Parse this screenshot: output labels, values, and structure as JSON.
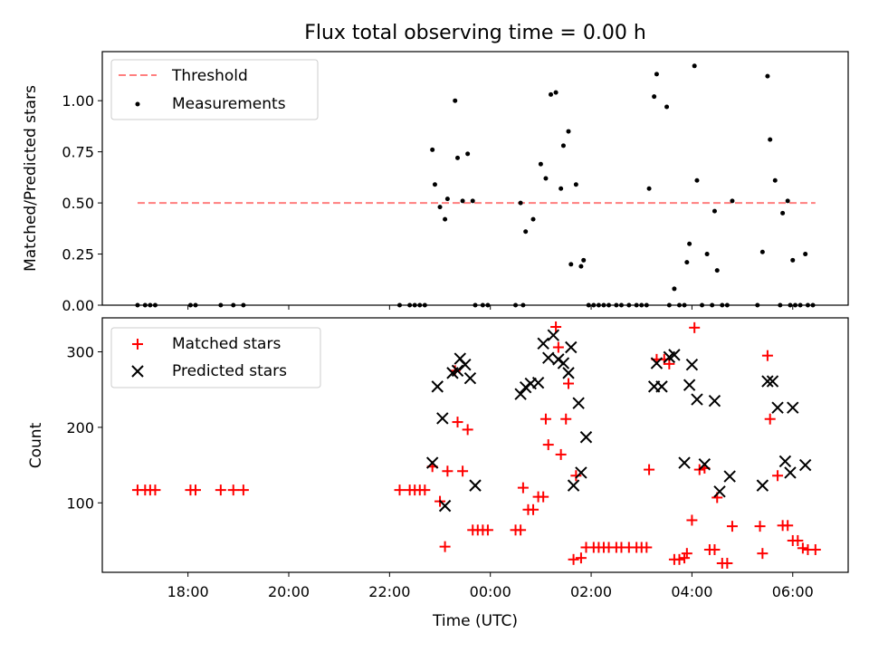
{
  "chart_data": [
    {
      "type": "scatter",
      "title": "Flux total observing time = 0.00 h",
      "ylabel": "Matched/Predicted stars",
      "xlim": [
        16.3,
        31.1
      ],
      "ylim": [
        0.0,
        1.24
      ],
      "yticks": [
        "0.00",
        "0.25",
        "0.50",
        "0.75",
        "1.00"
      ],
      "ytick_values": [
        0.0,
        0.25,
        0.5,
        0.75,
        1.0
      ],
      "legend_position": "top-left",
      "threshold": {
        "name": "Threshold",
        "value": 0.5,
        "x": [
          17.0,
          30.45
        ],
        "color": "#ff7f7f"
      },
      "series": [
        {
          "name": "Measurements",
          "color": "#000000",
          "points": [
            [
              17.0,
              0
            ],
            [
              17.15,
              0
            ],
            [
              17.25,
              0
            ],
            [
              17.35,
              0
            ],
            [
              18.05,
              0
            ],
            [
              18.15,
              0
            ],
            [
              18.65,
              0
            ],
            [
              18.9,
              0
            ],
            [
              19.1,
              0
            ],
            [
              22.2,
              0
            ],
            [
              22.4,
              0
            ],
            [
              22.5,
              0
            ],
            [
              22.6,
              0
            ],
            [
              22.7,
              0
            ],
            [
              22.85,
              0.76
            ],
            [
              22.9,
              0.59
            ],
            [
              23.0,
              0.48
            ],
            [
              23.1,
              0.42
            ],
            [
              23.15,
              0.52
            ],
            [
              23.3,
              1.0
            ],
            [
              23.35,
              0.72
            ],
            [
              23.45,
              0.51
            ],
            [
              23.55,
              0.74
            ],
            [
              23.65,
              0.51
            ],
            [
              23.7,
              0
            ],
            [
              23.85,
              0
            ],
            [
              23.95,
              0
            ],
            [
              24.5,
              0
            ],
            [
              24.6,
              0.5
            ],
            [
              24.65,
              0
            ],
            [
              24.7,
              0.36
            ],
            [
              24.85,
              0.42
            ],
            [
              25.0,
              0.69
            ],
            [
              25.1,
              0.62
            ],
            [
              25.2,
              1.03
            ],
            [
              25.3,
              1.04
            ],
            [
              25.4,
              0.57
            ],
            [
              25.45,
              0.78
            ],
            [
              25.55,
              0.85
            ],
            [
              25.6,
              0.2
            ],
            [
              25.7,
              0.59
            ],
            [
              25.8,
              0.19
            ],
            [
              25.85,
              0.22
            ],
            [
              25.95,
              0
            ],
            [
              26.05,
              0
            ],
            [
              26.15,
              0
            ],
            [
              26.25,
              0
            ],
            [
              26.35,
              0
            ],
            [
              26.5,
              0
            ],
            [
              26.6,
              0
            ],
            [
              26.75,
              0
            ],
            [
              26.9,
              0
            ],
            [
              27.0,
              0
            ],
            [
              27.1,
              0
            ],
            [
              27.15,
              0.57
            ],
            [
              27.25,
              1.02
            ],
            [
              27.3,
              1.13
            ],
            [
              27.5,
              0.97
            ],
            [
              27.55,
              0
            ],
            [
              27.65,
              0.08
            ],
            [
              27.75,
              0
            ],
            [
              27.85,
              0
            ],
            [
              27.9,
              0.21
            ],
            [
              27.95,
              0.3
            ],
            [
              28.05,
              1.17
            ],
            [
              28.1,
              0.61
            ],
            [
              28.2,
              0
            ],
            [
              28.3,
              0.25
            ],
            [
              28.4,
              0
            ],
            [
              28.45,
              0.46
            ],
            [
              28.5,
              0.17
            ],
            [
              28.6,
              0
            ],
            [
              28.7,
              0
            ],
            [
              28.8,
              0.51
            ],
            [
              29.3,
              0
            ],
            [
              29.4,
              0.26
            ],
            [
              29.5,
              1.12
            ],
            [
              29.55,
              0.81
            ],
            [
              29.65,
              0.61
            ],
            [
              29.75,
              0
            ],
            [
              29.8,
              0.45
            ],
            [
              29.9,
              0.51
            ],
            [
              29.95,
              0
            ],
            [
              30.0,
              0.22
            ],
            [
              30.05,
              0
            ],
            [
              30.15,
              0
            ],
            [
              30.25,
              0.25
            ],
            [
              30.3,
              0
            ],
            [
              30.4,
              0
            ]
          ]
        }
      ]
    },
    {
      "type": "scatter",
      "xlabel": "Time (UTC)",
      "ylabel": "Count",
      "xlim": [
        16.3,
        31.1
      ],
      "ylim": [
        8,
        345
      ],
      "xticks": [
        "18:00",
        "20:00",
        "22:00",
        "00:00",
        "02:00",
        "04:00",
        "06:00"
      ],
      "xtick_values": [
        18,
        20,
        22,
        24,
        26,
        28,
        30
      ],
      "yticks": [
        "100",
        "200",
        "300"
      ],
      "ytick_values": [
        100,
        200,
        300
      ],
      "legend_position": "top-left",
      "series": [
        {
          "name": "Matched stars",
          "marker": "+",
          "color": "#ff0000",
          "points": [
            [
              17.0,
              117
            ],
            [
              17.15,
              117
            ],
            [
              17.25,
              117
            ],
            [
              17.35,
              117
            ],
            [
              18.05,
              117
            ],
            [
              18.15,
              117
            ],
            [
              18.65,
              117
            ],
            [
              18.9,
              117
            ],
            [
              19.1,
              117
            ],
            [
              22.2,
              117
            ],
            [
              22.4,
              117
            ],
            [
              22.5,
              117
            ],
            [
              22.6,
              117
            ],
            [
              22.7,
              117
            ],
            [
              22.85,
              148
            ],
            [
              23.0,
              102
            ],
            [
              23.1,
              42
            ],
            [
              23.15,
              142
            ],
            [
              23.3,
              275
            ],
            [
              23.35,
              207
            ],
            [
              23.45,
              142
            ],
            [
              23.55,
              197
            ],
            [
              23.65,
              64
            ],
            [
              23.75,
              64
            ],
            [
              23.85,
              64
            ],
            [
              23.95,
              64
            ],
            [
              24.5,
              64
            ],
            [
              24.6,
              64
            ],
            [
              24.65,
              120
            ],
            [
              24.75,
              91
            ],
            [
              24.85,
              91
            ],
            [
              24.95,
              108
            ],
            [
              25.05,
              108
            ],
            [
              25.1,
              211
            ],
            [
              25.15,
              177
            ],
            [
              25.3,
              333
            ],
            [
              25.35,
              306
            ],
            [
              25.4,
              164
            ],
            [
              25.5,
              211
            ],
            [
              25.55,
              258
            ],
            [
              25.65,
              25
            ],
            [
              25.7,
              136
            ],
            [
              25.8,
              27
            ],
            [
              25.9,
              41
            ],
            [
              26.05,
              41
            ],
            [
              26.15,
              41
            ],
            [
              26.25,
              41
            ],
            [
              26.35,
              41
            ],
            [
              26.5,
              41
            ],
            [
              26.6,
              41
            ],
            [
              26.75,
              41
            ],
            [
              26.9,
              41
            ],
            [
              27.0,
              41
            ],
            [
              27.1,
              41
            ],
            [
              27.15,
              144
            ],
            [
              27.3,
              290
            ],
            [
              27.45,
              290
            ],
            [
              27.55,
              284
            ],
            [
              27.65,
              25
            ],
            [
              27.75,
              25
            ],
            [
              27.85,
              27
            ],
            [
              27.9,
              33
            ],
            [
              28.0,
              77
            ],
            [
              28.05,
              332
            ],
            [
              28.15,
              144
            ],
            [
              28.25,
              146
            ],
            [
              28.35,
              38
            ],
            [
              28.45,
              38
            ],
            [
              28.5,
              107
            ],
            [
              28.6,
              20
            ],
            [
              28.7,
              20
            ],
            [
              28.8,
              69
            ],
            [
              29.35,
              69
            ],
            [
              29.4,
              33
            ],
            [
              29.5,
              295
            ],
            [
              29.55,
              211
            ],
            [
              29.7,
              136
            ],
            [
              29.8,
              70
            ],
            [
              29.9,
              70
            ],
            [
              30.0,
              50
            ],
            [
              30.1,
              50
            ],
            [
              30.2,
              40
            ],
            [
              30.3,
              38
            ],
            [
              30.45,
              38
            ]
          ]
        },
        {
          "name": "Predicted stars",
          "marker": "x",
          "color": "#000000",
          "points": [
            [
              22.85,
              153
            ],
            [
              22.95,
              254
            ],
            [
              23.05,
              212
            ],
            [
              23.1,
              96
            ],
            [
              23.25,
              272
            ],
            [
              23.35,
              275
            ],
            [
              23.4,
              291
            ],
            [
              23.5,
              283
            ],
            [
              23.6,
              265
            ],
            [
              23.7,
              123
            ],
            [
              24.6,
              244
            ],
            [
              24.7,
              253
            ],
            [
              24.8,
              258
            ],
            [
              24.95,
              259
            ],
            [
              25.05,
              311
            ],
            [
              25.15,
              292
            ],
            [
              25.25,
              322
            ],
            [
              25.35,
              290
            ],
            [
              25.45,
              285
            ],
            [
              25.55,
              272
            ],
            [
              25.6,
              306
            ],
            [
              25.65,
              123
            ],
            [
              25.75,
              232
            ],
            [
              25.8,
              140
            ],
            [
              25.9,
              187
            ],
            [
              27.25,
              254
            ],
            [
              27.3,
              285
            ],
            [
              27.4,
              254
            ],
            [
              27.55,
              293
            ],
            [
              27.65,
              296
            ],
            [
              27.85,
              153
            ],
            [
              27.95,
              256
            ],
            [
              28.0,
              283
            ],
            [
              28.1,
              237
            ],
            [
              28.25,
              151
            ],
            [
              28.45,
              235
            ],
            [
              28.55,
              115
            ],
            [
              28.75,
              135
            ],
            [
              29.4,
              123
            ],
            [
              29.5,
              261
            ],
            [
              29.6,
              261
            ],
            [
              29.7,
              226
            ],
            [
              29.85,
              155
            ],
            [
              29.95,
              140
            ],
            [
              30.0,
              226
            ],
            [
              30.25,
              150
            ]
          ]
        }
      ]
    }
  ]
}
